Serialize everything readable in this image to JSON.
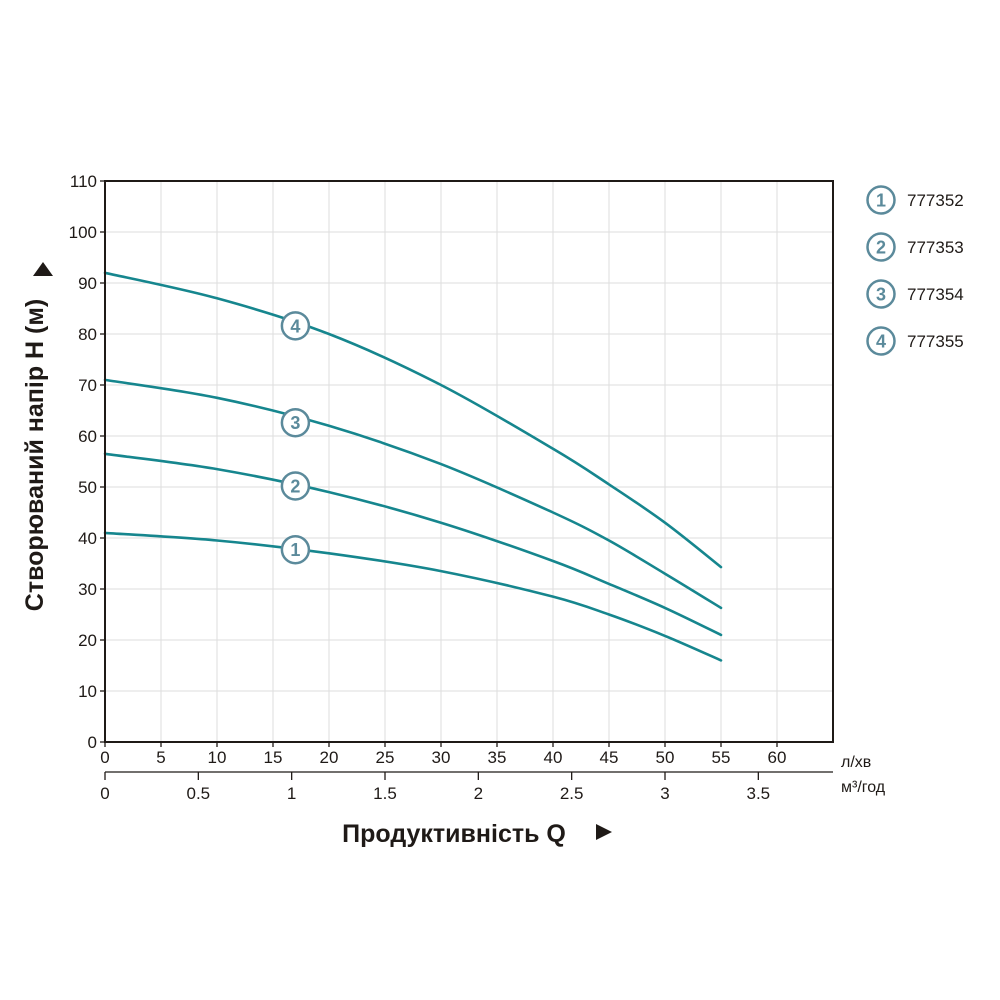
{
  "chart_data": {
    "type": "line",
    "ylabel": "Створюваний напір H (м)",
    "xlabel": "Продуктивність Q",
    "x_unit": "л/хв",
    "x2_unit": "м³/год",
    "ylim": [
      0,
      110
    ],
    "xlim": [
      0,
      65
    ],
    "yticks": [
      "0",
      "10",
      "20",
      "30",
      "40",
      "50",
      "60",
      "70",
      "80",
      "90",
      "100",
      "110"
    ],
    "xticks": [
      "0",
      "5",
      "10",
      "15",
      "20",
      "25",
      "30",
      "35",
      "40",
      "45",
      "50",
      "55",
      "60"
    ],
    "x2ticks": [
      "0",
      "0.5",
      "1",
      "1.5",
      "2",
      "2.5",
      "3",
      "3.5"
    ],
    "grid": true,
    "legend_position": "right",
    "series": [
      {
        "name": "777352",
        "label": "1",
        "x": [
          0,
          10,
          20,
          30,
          40,
          45,
          50,
          55
        ],
        "values": [
          41,
          39.5,
          37,
          33.5,
          28.5,
          25,
          20.8,
          16
        ]
      },
      {
        "name": "777353",
        "label": "2",
        "x": [
          0,
          10,
          20,
          30,
          40,
          45,
          50,
          55
        ],
        "values": [
          56.5,
          53.5,
          49,
          43,
          35.5,
          31,
          26.3,
          21
        ]
      },
      {
        "name": "777354",
        "label": "3",
        "x": [
          0,
          10,
          20,
          30,
          40,
          45,
          50,
          55
        ],
        "values": [
          71,
          67.5,
          62,
          54.5,
          45,
          39.5,
          33,
          26.3
        ]
      },
      {
        "name": "777355",
        "label": "4",
        "x": [
          0,
          10,
          20,
          30,
          40,
          45,
          50,
          55
        ],
        "values": [
          92,
          87,
          80,
          70,
          57.5,
          50.5,
          43,
          34.3
        ]
      }
    ],
    "badges": [
      {
        "label": "1",
        "x": 17,
        "y": 37.7
      },
      {
        "label": "2",
        "x": 17,
        "y": 50.2
      },
      {
        "label": "3",
        "x": 17,
        "y": 62.6
      },
      {
        "label": "4",
        "x": 17,
        "y": 81.6
      }
    ],
    "colors": {
      "line": "#16868e",
      "badge": "#5b8a9b",
      "axis": "#1f1a17",
      "grid": "#dddddd"
    }
  }
}
